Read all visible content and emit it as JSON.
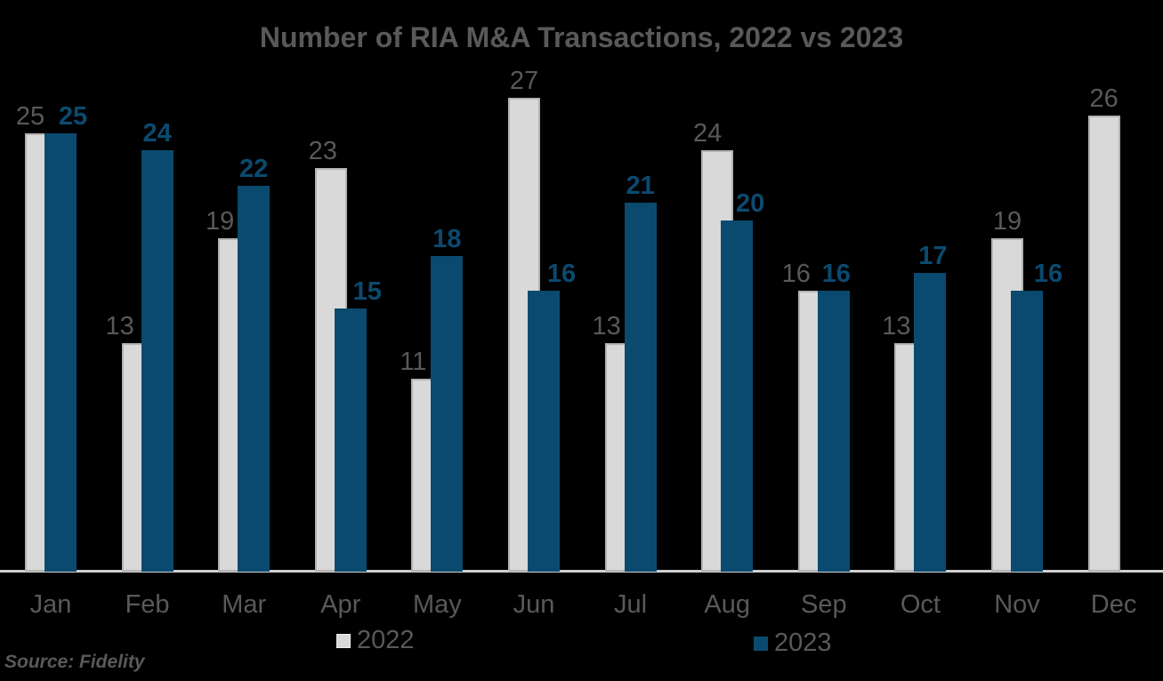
{
  "title": "Number of RIA M&A Transactions, 2022 vs 2023",
  "source_note": "Source: Fidelity",
  "legend": {
    "items": [
      {
        "label": "2022",
        "color": "#d9d9d9"
      },
      {
        "label": "2023",
        "color": "#0b4a6f"
      }
    ],
    "position": "bottom"
  },
  "colors": {
    "background": "#000000",
    "series_2022_fill": "#d9d9d9",
    "series_2022_border": "#b3b3b3",
    "series_2023_fill": "#0b4a6f",
    "text_gray": "#595959",
    "axis_line": "#d0d0d0"
  },
  "chart_data": {
    "type": "bar",
    "title": "Number of RIA M&A Transactions, 2022 vs 2023",
    "categories": [
      "Jan",
      "Feb",
      "Mar",
      "Apr",
      "May",
      "Jun",
      "Jul",
      "Aug",
      "Sep",
      "Oct",
      "Nov",
      "Dec"
    ],
    "series": [
      {
        "name": "2022",
        "color": "#d9d9d9",
        "values": [
          25,
          13,
          19,
          23,
          11,
          27,
          13,
          24,
          16,
          13,
          19,
          26
        ]
      },
      {
        "name": "2023",
        "color": "#0b4a6f",
        "values": [
          25,
          24,
          22,
          15,
          18,
          16,
          21,
          20,
          16,
          17,
          16,
          null
        ]
      }
    ],
    "data_labels": true,
    "xlabel": "",
    "ylabel": "",
    "ylim": [
      0,
      28
    ],
    "grid": false,
    "y_axis_visible": false,
    "legend_position": "bottom",
    "label_dx": {
      "2022": [
        -12,
        -20,
        -16,
        -9,
        -16,
        0,
        -16,
        -11,
        -20,
        -16,
        0,
        0
      ],
      "2023": [
        14,
        0,
        0,
        19,
        0,
        20,
        0,
        15,
        3,
        3,
        24,
        null
      ]
    }
  }
}
